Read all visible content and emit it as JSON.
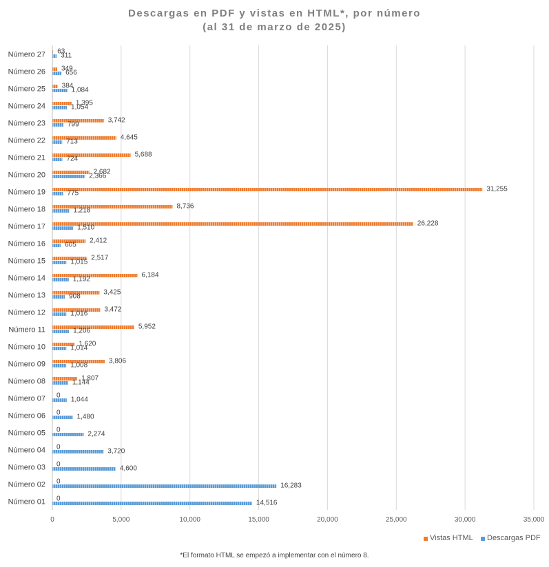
{
  "chart_data": {
    "type": "bar",
    "orientation": "horizontal",
    "title": "Descargas en PDF y vistas en HTML*, por número",
    "subtitle": "(al 31 de marzo de 2025)",
    "categories": [
      "Número 27",
      "Número 26",
      "Número 25",
      "Número 24",
      "Número 23",
      "Número 22",
      "Número 21",
      "Número 20",
      "Número 19",
      "Número 18",
      "Número 17",
      "Número 16",
      "Número 15",
      "Número 14",
      "Número 13",
      "Número 12",
      "Número 11",
      "Número 10",
      "Número 09",
      "Número 08",
      "Número 07",
      "Número 06",
      "Número 05",
      "Número 04",
      "Número 03",
      "Número 02",
      "Número 01"
    ],
    "series": [
      {
        "name": "Vistas HTML",
        "color": "#ED7D31",
        "values": [
          63,
          349,
          384,
          1395,
          3742,
          4645,
          5688,
          2682,
          31255,
          8736,
          26228,
          2412,
          2517,
          6184,
          3425,
          3472,
          5952,
          1620,
          3806,
          1807,
          0,
          0,
          0,
          0,
          0,
          0,
          0
        ],
        "labels": [
          "63",
          "349",
          "384",
          "1,395",
          "3,742",
          "4,645",
          "5,688",
          "2,682",
          "31,255",
          "8,736",
          "26,228",
          "2,412",
          "2,517",
          "6,184",
          "3,425",
          "3,472",
          "5,952",
          "1,620",
          "3,806",
          "1,807",
          "0",
          "0",
          "0",
          "0",
          "0",
          "0",
          "0"
        ]
      },
      {
        "name": "Descargas PDF",
        "color": "#5B9BD5",
        "values": [
          311,
          656,
          1084,
          1054,
          799,
          713,
          724,
          2366,
          775,
          1218,
          1510,
          605,
          1015,
          1192,
          908,
          1016,
          1206,
          1014,
          1008,
          1144,
          1044,
          1480,
          2274,
          3720,
          4600,
          16283,
          14516
        ],
        "labels": [
          "311",
          "656",
          "1,084",
          "1,054",
          "799",
          "713",
          "724",
          "2,366",
          "775",
          "1,218",
          "1,510",
          "605",
          "1,015",
          "1,192",
          "908",
          "1,016",
          "1,206",
          "1,014",
          "1,008",
          "1,144",
          "1,044",
          "1,480",
          "2,274",
          "3,720",
          "4,600",
          "16,283",
          "14,516"
        ]
      }
    ],
    "xlim": [
      0,
      35000
    ],
    "xticks": [
      0,
      5000,
      10000,
      15000,
      20000,
      25000,
      30000,
      35000
    ],
    "xtick_labels": [
      "0",
      "5,000",
      "10,000",
      "15,000",
      "20,000",
      "25,000",
      "30,000",
      "35,000"
    ],
    "grid": true,
    "legend_position": "bottom-right",
    "footnote": "*El formato HTML se empezó a implementar con el número 8."
  }
}
